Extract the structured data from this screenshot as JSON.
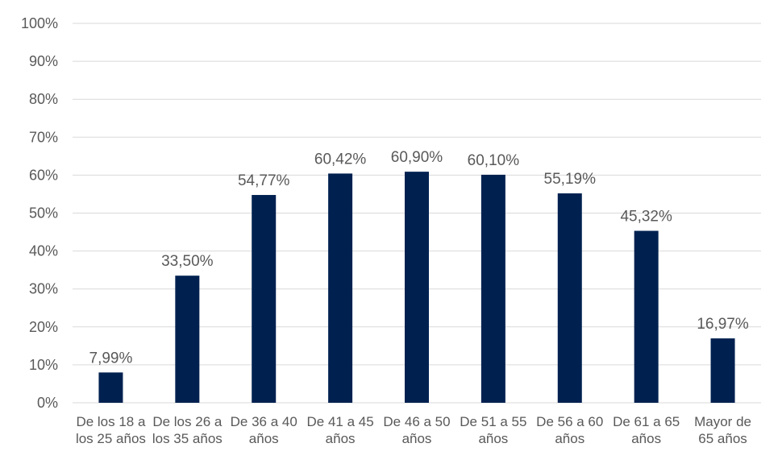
{
  "chart_data": {
    "type": "bar",
    "title": "",
    "xlabel": "",
    "ylabel": "",
    "categories": [
      [
        "De los 18 a",
        "los 25 años"
      ],
      [
        "De los 26 a",
        "los 35 años"
      ],
      [
        "De 36 a 40",
        "años"
      ],
      [
        "De 41 a 45",
        "años"
      ],
      [
        "De 46 a 50",
        "años"
      ],
      [
        "De 51 a 55",
        "años"
      ],
      [
        "De 56 a 60",
        "años"
      ],
      [
        "De 61 a 65",
        "años"
      ],
      [
        "Mayor de",
        "65 años"
      ]
    ],
    "values": [
      7.99,
      33.5,
      54.77,
      60.42,
      60.9,
      60.1,
      55.19,
      45.32,
      16.97
    ],
    "data_labels": [
      "7,99%",
      "33,50%",
      "54,77%",
      "60,42%",
      "60,90%",
      "60,10%",
      "55,19%",
      "45,32%",
      "16,97%"
    ],
    "y_ticks": [
      "0%",
      "10%",
      "20%",
      "30%",
      "40%",
      "50%",
      "60%",
      "70%",
      "80%",
      "90%",
      "100%"
    ],
    "ylim": [
      0,
      100
    ],
    "grid": true,
    "legend": "none",
    "colors": {
      "bar": "#002150",
      "grid": "#d9d9d9",
      "text": "#595959"
    }
  }
}
